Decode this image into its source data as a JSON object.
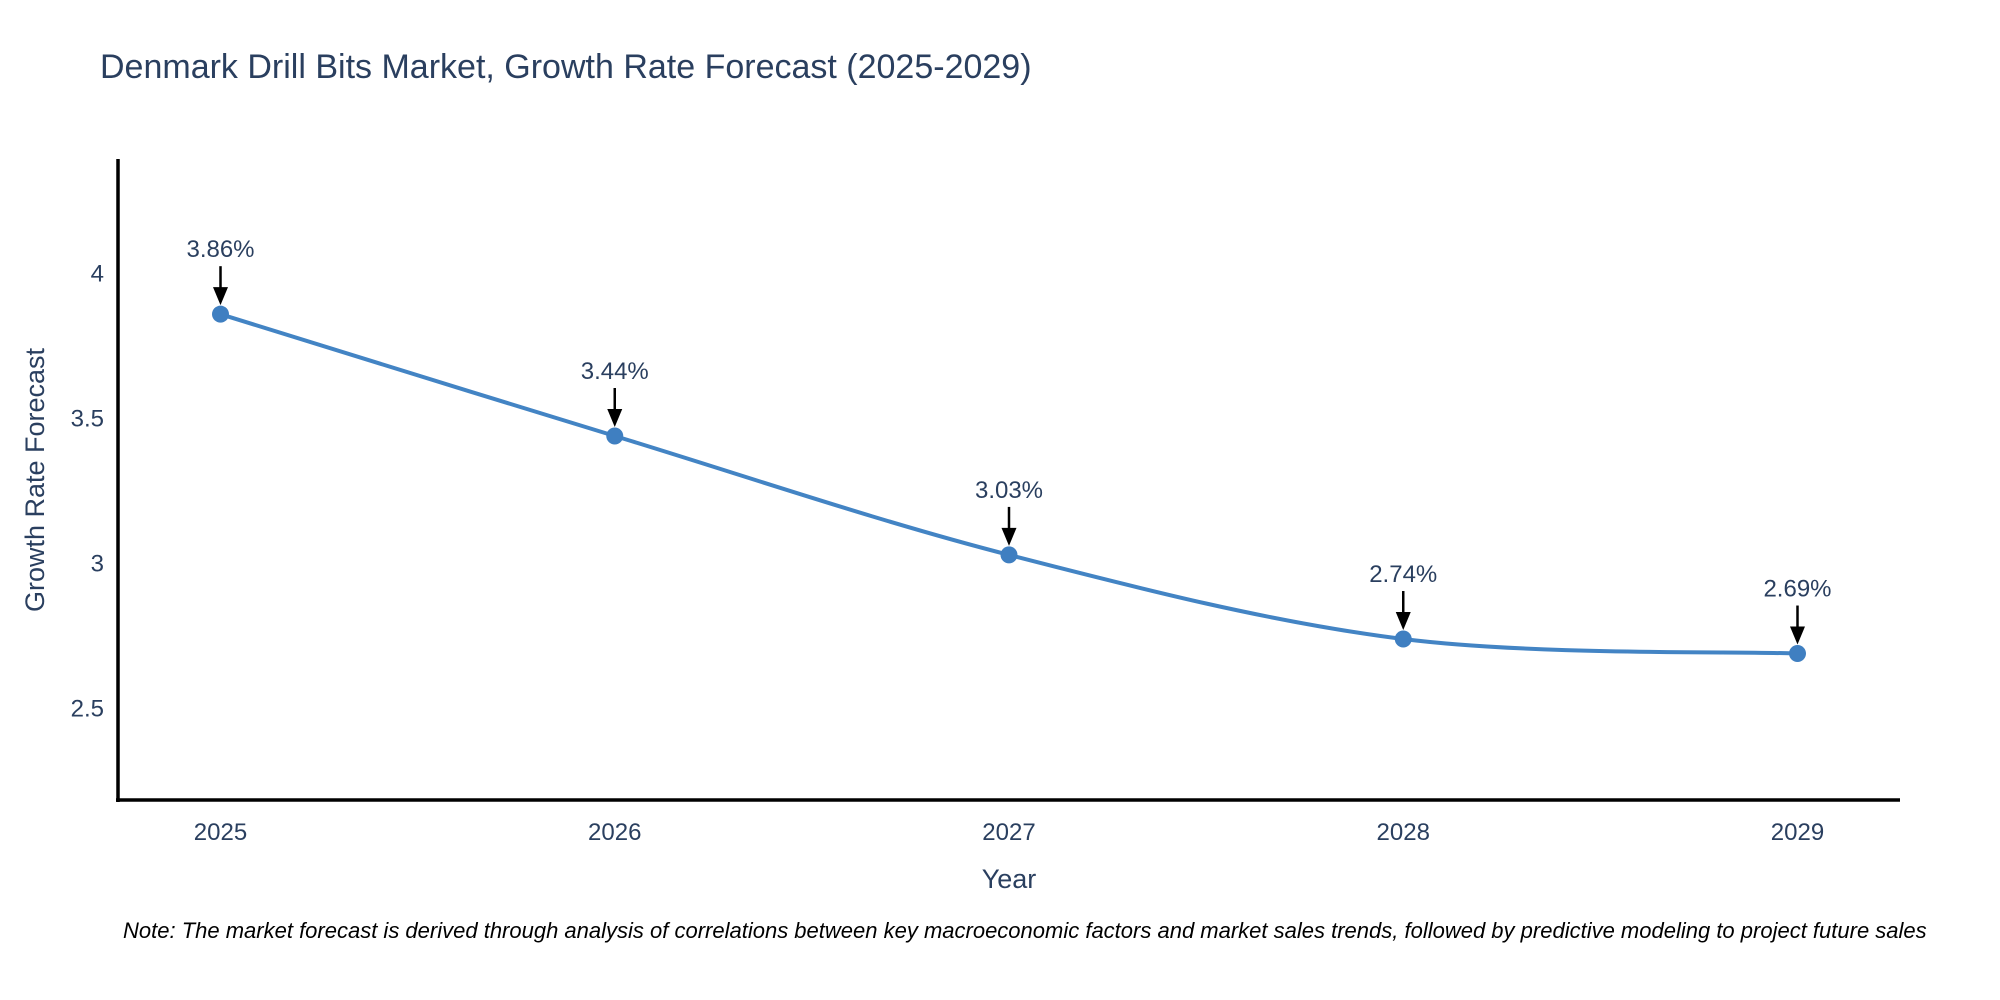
{
  "note": "Note: The market forecast is derived through analysis of correlations between key macroeconomic factors and market sales trends, followed by predictive modeling to project future sales",
  "chart_data": {
    "type": "line",
    "title": "Denmark Drill Bits Market, Growth Rate Forecast (2025-2029)",
    "x": [
      2025,
      2026,
      2027,
      2028,
      2029
    ],
    "x_tick_labels": [
      "2025",
      "2026",
      "2027",
      "2028",
      "2029"
    ],
    "values": [
      3.86,
      3.44,
      3.03,
      2.74,
      2.69
    ],
    "point_labels": [
      "3.86%",
      "3.44%",
      "3.03%",
      "2.74%",
      "2.69%"
    ],
    "xlabel": "Year",
    "ylabel": "Growth Rate Forecast",
    "yticks": [
      2.5,
      3,
      3.5,
      4
    ],
    "ytick_labels": [
      "2.5",
      "3",
      "3.5",
      "4"
    ],
    "xlim": [
      2024.74,
      2029.26
    ],
    "ylim": [
      2.185,
      4.395
    ],
    "grid": false,
    "legend": "none",
    "line_shape": "spline",
    "colors": {
      "line": "#4384c4",
      "marker": "#3f7fc1",
      "arrow": "#000000",
      "axis": "#000000",
      "text": "#2a3f5f",
      "background": "#ffffff"
    }
  }
}
